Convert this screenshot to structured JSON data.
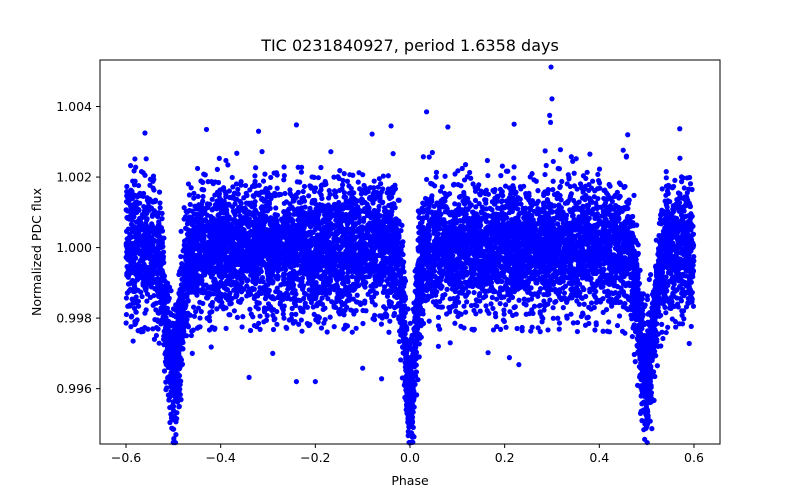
{
  "chart_data": {
    "type": "scatter",
    "title": "TIC 0231840927, period 1.6358 days",
    "xlabel": "Phase",
    "ylabel": "Normalized PDC flux",
    "xlim": [
      -0.655,
      0.655
    ],
    "ylim": [
      0.99443,
      1.00532
    ],
    "xticks": [
      {
        "value": -0.6,
        "label": "−0.6"
      },
      {
        "value": -0.4,
        "label": "−0.4"
      },
      {
        "value": -0.2,
        "label": "−0.2"
      },
      {
        "value": 0.0,
        "label": "0.0"
      },
      {
        "value": 0.2,
        "label": "0.2"
      },
      {
        "value": 0.4,
        "label": "0.4"
      },
      {
        "value": 0.6,
        "label": "0.6"
      }
    ],
    "yticks": [
      {
        "value": 0.996,
        "label": "0.996"
      },
      {
        "value": 0.998,
        "label": "0.998"
      },
      {
        "value": 1.0,
        "label": "1.000"
      },
      {
        "value": 1.002,
        "label": "1.002"
      },
      {
        "value": 1.004,
        "label": "1.004"
      }
    ],
    "grid": false,
    "series": [
      {
        "name": "PDC flux",
        "color": "#0000ff",
        "marker": "circle",
        "model": {
          "phase_range": [
            -0.6,
            0.6
          ],
          "baseline_flux": 1.0,
          "scatter_sigma": 0.0009,
          "primary_eclipse": {
            "center": 0.0,
            "depth": 0.0043,
            "half_width": 0.011
          },
          "secondary_eclipse": {
            "center": 0.5,
            "depth": 0.0036,
            "half_width": 0.015
          },
          "point_count": 9000
        },
        "points": [
          {
            "x": 0.298,
            "y": 1.00512
          },
          {
            "x": 0.3,
            "y": 1.00422
          },
          {
            "x": 0.295,
            "y": 1.00375
          },
          {
            "x": 0.297,
            "y": 1.00355
          },
          {
            "x": 0.035,
            "y": 1.00385
          },
          {
            "x": 0.22,
            "y": 1.0035
          },
          {
            "x": -0.24,
            "y": 1.00348
          },
          {
            "x": -0.43,
            "y": 1.00335
          },
          {
            "x": -0.04,
            "y": 1.00345
          },
          {
            "x": 0.57,
            "y": 1.00337
          },
          {
            "x": -0.32,
            "y": 1.0033
          },
          {
            "x": 0.08,
            "y": 1.00342
          },
          {
            "x": -0.56,
            "y": 1.00325
          },
          {
            "x": 0.46,
            "y": 1.0032
          },
          {
            "x": -0.08,
            "y": 1.00322
          },
          {
            "x": 0.005,
            "y": 0.99462
          },
          {
            "x": 0.003,
            "y": 0.99475
          },
          {
            "x": 0.007,
            "y": 0.9949
          },
          {
            "x": 0.001,
            "y": 0.9951
          },
          {
            "x": -0.493,
            "y": 0.99515
          },
          {
            "x": -0.498,
            "y": 0.99518
          },
          {
            "x": 0.5,
            "y": 0.99512
          },
          {
            "x": 0.503,
            "y": 0.99518
          },
          {
            "x": -0.34,
            "y": 0.99632
          },
          {
            "x": -0.06,
            "y": 0.99628
          },
          {
            "x": -0.1,
            "y": 0.99658
          },
          {
            "x": -0.24,
            "y": 0.9962
          },
          {
            "x": -0.2,
            "y": 0.9962
          },
          {
            "x": 0.23,
            "y": 0.99668
          },
          {
            "x": 0.21,
            "y": 0.99688
          },
          {
            "x": 0.165,
            "y": 0.99702
          },
          {
            "x": 0.06,
            "y": 0.9972
          },
          {
            "x": -0.46,
            "y": 0.997
          },
          {
            "x": -0.29,
            "y": 0.997
          },
          {
            "x": -0.42,
            "y": 0.99718
          },
          {
            "x": 0.59,
            "y": 0.99728
          },
          {
            "x": -0.585,
            "y": 0.99735
          },
          {
            "x": -0.54,
            "y": 0.9974
          },
          {
            "x": 0.085,
            "y": 0.9973
          }
        ]
      }
    ]
  }
}
